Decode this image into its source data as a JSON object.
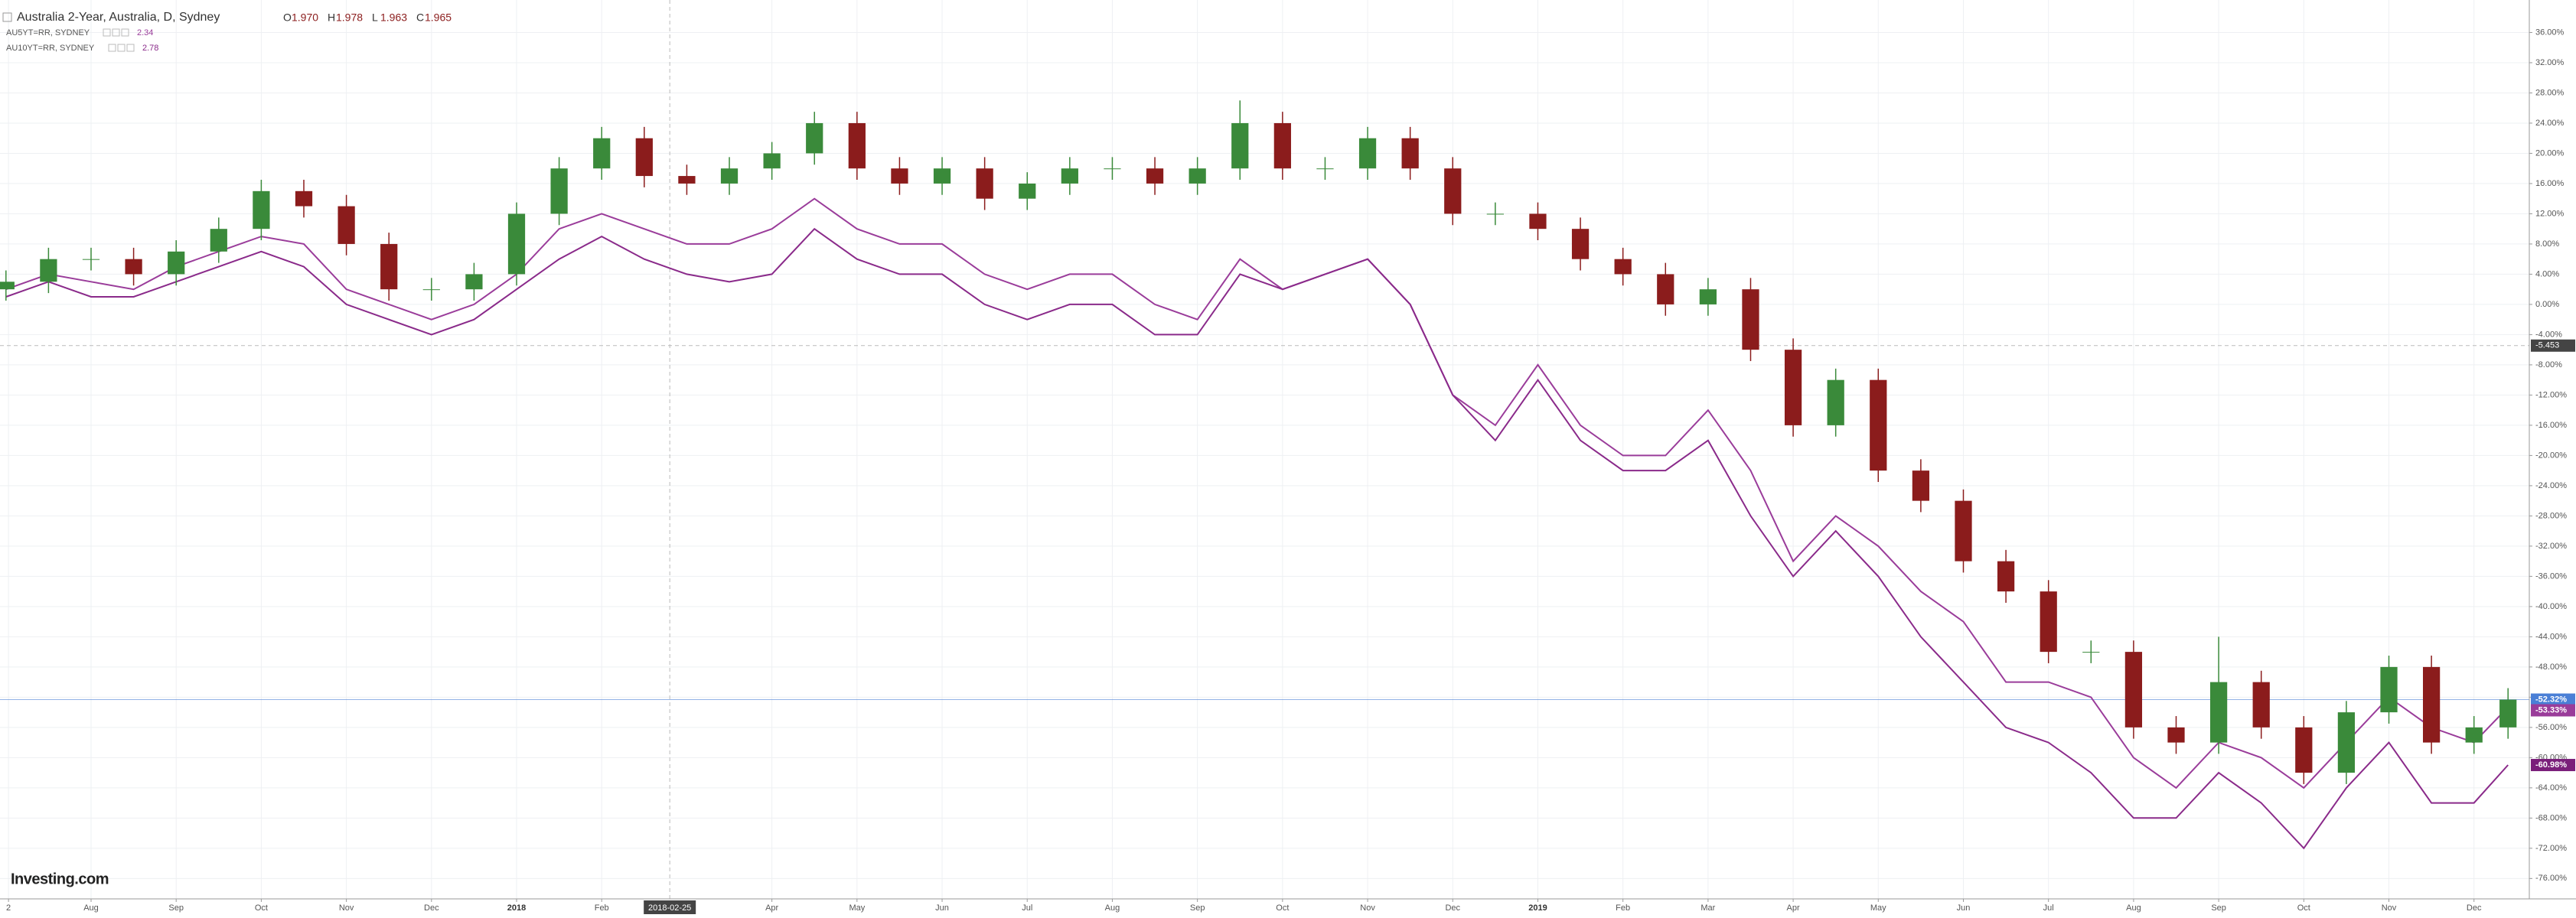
{
  "chart_data": {
    "type": "candlestick",
    "title": "Australia 2-Year, Australia, D, Sydney",
    "ohlc": [
      {
        "key": "O",
        "value": "1.970"
      },
      {
        "key": "H",
        "value": "1.978"
      },
      {
        "key": "L",
        "value": "1.963"
      },
      {
        "key": "C",
        "value": "1.965"
      }
    ],
    "logo": "Investing.com",
    "up_color": "#3a8a3a",
    "down_color": "#8b1c1c",
    "x": [
      0,
      0.5,
      1,
      1.5,
      2,
      2.5,
      3,
      3.5,
      4,
      4.5,
      5,
      5.5,
      6,
      6.5,
      7,
      7.5,
      8,
      8.5,
      9,
      9.5,
      10,
      10.5,
      11,
      11.5,
      12,
      12.5,
      13,
      13.5,
      14,
      14.5,
      15,
      15.5,
      16,
      16.5,
      17,
      17.5,
      18,
      18.5,
      19,
      19.5,
      20,
      20.5,
      21,
      21.5,
      22,
      22.5,
      23,
      23.5,
      24,
      24.5,
      25,
      25.5,
      26,
      26.5,
      27,
      27.5,
      28,
      28.5,
      29,
      29.4
    ],
    "open": [
      2,
      3,
      6,
      6,
      4,
      7,
      10,
      15,
      13,
      8,
      2,
      2,
      4,
      12,
      18,
      22,
      17,
      16,
      18,
      20,
      24,
      18,
      16,
      18,
      14,
      16,
      18,
      18,
      16,
      18,
      24,
      18,
      18,
      22,
      18,
      12,
      12,
      10,
      6,
      4,
      0,
      2,
      -6,
      -16,
      -10,
      -22,
      -26,
      -34,
      -38,
      -46,
      -46,
      -56,
      -58,
      -50,
      -56,
      -62,
      -54,
      -48,
      -58,
      -56
    ],
    "high": [
      4.5,
      7.5,
      7.5,
      7.5,
      8.5,
      11.5,
      16.5,
      16.5,
      14.5,
      9.5,
      3.5,
      5.5,
      13.5,
      19.5,
      23.5,
      23.5,
      18.5,
      19.5,
      21.5,
      25.5,
      25.5,
      19.5,
      19.5,
      19.5,
      17.5,
      19.5,
      19.5,
      19.5,
      19.5,
      27,
      25.5,
      19.5,
      23.5,
      23.5,
      19.5,
      13.5,
      13.5,
      11.5,
      7.5,
      5.5,
      3.5,
      3.5,
      -4.5,
      -8.5,
      -8.5,
      -20.5,
      -24.5,
      -32.5,
      -36.5,
      -44.5,
      -44.5,
      -54.5,
      -44,
      -48.5,
      -54.5,
      -52.5,
      -46.5,
      -46.5,
      -54.5,
      -50.8
    ],
    "low": [
      0.5,
      1.5,
      4.5,
      2.5,
      2.5,
      5.5,
      8.5,
      11.5,
      6.5,
      0.5,
      0.5,
      0.5,
      2.5,
      10.5,
      16.5,
      15.5,
      14.5,
      14.5,
      16.5,
      18.5,
      16.5,
      14.5,
      14.5,
      12.5,
      12.5,
      14.5,
      16.5,
      14.5,
      14.5,
      16.5,
      16.5,
      16.5,
      16.5,
      16.5,
      10.5,
      10.5,
      8.5,
      4.5,
      2.5,
      -1.5,
      -1.5,
      -7.5,
      -17.5,
      -17.5,
      -23.5,
      -27.5,
      -35.5,
      -39.5,
      -47.5,
      -47.5,
      -57.5,
      -59.5,
      -59.5,
      -57.5,
      -63.5,
      -63.5,
      -55.5,
      -59.5,
      -59.5,
      -57.5
    ],
    "close": [
      3,
      6,
      6,
      4,
      7,
      10,
      15,
      13,
      8,
      2,
      2,
      4,
      12,
      18,
      22,
      17,
      16,
      18,
      20,
      24,
      18,
      16,
      18,
      14,
      16,
      18,
      18,
      16,
      18,
      24,
      18,
      18,
      22,
      18,
      12,
      12,
      10,
      6,
      4,
      0,
      2,
      -6,
      -16,
      -10,
      -22,
      -26,
      -34,
      -38,
      -46,
      -46,
      -56,
      -58,
      -50,
      -56,
      -62,
      -54,
      -48,
      -58,
      -56,
      -52.32
    ],
    "series": [
      {
        "name": "AU5YT=RR, SYDNEY",
        "legend_value": "2.34",
        "color": "#9a3c9a",
        "values": [
          2,
          4,
          3,
          2,
          5,
          7,
          9,
          8,
          2,
          0,
          -2,
          0,
          4,
          10,
          12,
          10,
          8,
          8,
          10,
          14,
          10,
          8,
          8,
          4,
          2,
          4,
          4,
          0,
          -2,
          6,
          2,
          4,
          6,
          0,
          -12,
          -16,
          -8,
          -16,
          -20,
          -20,
          -14,
          -22,
          -34,
          -28,
          -32,
          -38,
          -42,
          -50,
          -50,
          -52,
          -60,
          -64,
          -58,
          -60,
          -64,
          -58,
          -52,
          -56,
          -58,
          -53.33
        ]
      },
      {
        "name": "AU10YT=RR, SYDNEY",
        "legend_value": "2.78",
        "color": "#8a2a8a",
        "values": [
          1,
          3,
          1,
          1,
          3,
          5,
          7,
          5,
          0,
          -2,
          -4,
          -2,
          2,
          6,
          9,
          6,
          4,
          3,
          4,
          10,
          6,
          4,
          4,
          0,
          -2,
          0,
          0,
          -4,
          -4,
          4,
          2,
          4,
          6,
          0,
          -12,
          -18,
          -10,
          -18,
          -22,
          -22,
          -18,
          -28,
          -36,
          -30,
          -36,
          -44,
          -50,
          -56,
          -58,
          -62,
          -68,
          -68,
          -62,
          -66,
          -72,
          -64,
          -58,
          -66,
          -66,
          -60.98
        ]
      }
    ],
    "xlim": [
      -0.07,
      29.65
    ],
    "xticks": [
      {
        "value": 0.03,
        "label": "2"
      },
      {
        "value": 1,
        "label": "Aug"
      },
      {
        "value": 2,
        "label": "Sep"
      },
      {
        "value": 3,
        "label": "Oct"
      },
      {
        "value": 4,
        "label": "Nov"
      },
      {
        "value": 5,
        "label": "Dec"
      },
      {
        "value": 6,
        "label": "2018"
      },
      {
        "value": 7,
        "label": "Feb"
      },
      {
        "value": 9,
        "label": "Apr"
      },
      {
        "value": 10,
        "label": "May"
      },
      {
        "value": 11,
        "label": "Jun"
      },
      {
        "value": 12,
        "label": "Jul"
      },
      {
        "value": 13,
        "label": "Aug"
      },
      {
        "value": 14,
        "label": "Sep"
      },
      {
        "value": 15,
        "label": "Oct"
      },
      {
        "value": 16,
        "label": "Nov"
      },
      {
        "value": 17,
        "label": "Dec"
      },
      {
        "value": 18,
        "label": "2019"
      },
      {
        "value": 19,
        "label": "Feb"
      },
      {
        "value": 20,
        "label": "Mar"
      },
      {
        "value": 21,
        "label": "Apr"
      },
      {
        "value": 22,
        "label": "May"
      },
      {
        "value": 23,
        "label": "Jun"
      },
      {
        "value": 24,
        "label": "Jul"
      },
      {
        "value": 25,
        "label": "Aug"
      },
      {
        "value": 26,
        "label": "Sep"
      },
      {
        "value": 27,
        "label": "Oct"
      },
      {
        "value": 28,
        "label": "Nov"
      },
      {
        "value": 29,
        "label": "Dec"
      }
    ],
    "ylim": [
      -78.7,
      40.3
    ],
    "yticks": [
      {
        "value": 36,
        "label": "36.00%"
      },
      {
        "value": 32,
        "label": "32.00%"
      },
      {
        "value": 28,
        "label": "28.00%"
      },
      {
        "value": 24,
        "label": "24.00%"
      },
      {
        "value": 20,
        "label": "20.00%"
      },
      {
        "value": 16,
        "label": "16.00%"
      },
      {
        "value": 12,
        "label": "12.00%"
      },
      {
        "value": 8,
        "label": "8.00%"
      },
      {
        "value": 4,
        "label": "4.00%"
      },
      {
        "value": 0,
        "label": "0.00%"
      },
      {
        "value": -4,
        "label": "-4.00%"
      },
      {
        "value": -8,
        "label": "-8.00%"
      },
      {
        "value": -12,
        "label": "-12.00%"
      },
      {
        "value": -16,
        "label": "-16.00%"
      },
      {
        "value": -20,
        "label": "-20.00%"
      },
      {
        "value": -24,
        "label": "-24.00%"
      },
      {
        "value": -28,
        "label": "-28.00%"
      },
      {
        "value": -32,
        "label": "-32.00%"
      },
      {
        "value": -36,
        "label": "-36.00%"
      },
      {
        "value": -40,
        "label": "-40.00%"
      },
      {
        "value": -44,
        "label": "-44.00%"
      },
      {
        "value": -48,
        "label": "-48.00%"
      },
      {
        "value": -52,
        "label": "-52.00%"
      },
      {
        "value": -56,
        "label": "-56.00%"
      },
      {
        "value": -60,
        "label": "-60.00%"
      },
      {
        "value": -64,
        "label": "-64.00%"
      },
      {
        "value": -68,
        "label": "-68.00%"
      },
      {
        "value": -72,
        "label": "-72.00%"
      },
      {
        "value": -76,
        "label": "-76.00%"
      }
    ],
    "grid": true,
    "crosshair": {
      "x": {
        "value": 7.8,
        "label": "2018-02-25"
      },
      "y": {
        "value": -5.453,
        "label": "-5.453"
      }
    },
    "price_markers": [
      {
        "value": -52.32,
        "label": "-52.32%",
        "color": "#4a7fd6"
      },
      {
        "value": -53.33,
        "label": "-53.33%",
        "color": "#9a3c9a"
      },
      {
        "value": -60.98,
        "label": "-60.98%",
        "color": "#7a1f7a"
      }
    ]
  }
}
